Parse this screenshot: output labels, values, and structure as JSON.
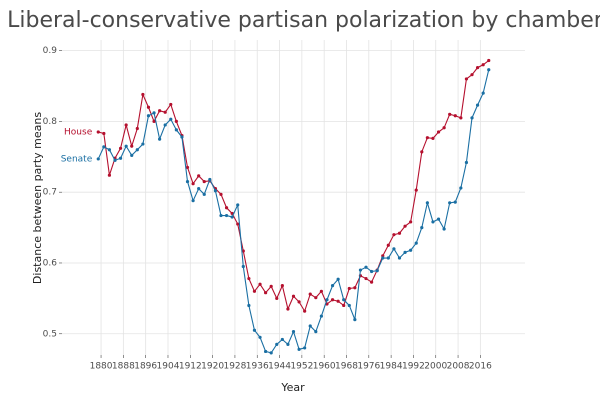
{
  "chart_data": {
    "type": "line",
    "title": "Liberal-conservative partisan polarization by chamber",
    "xlabel": "Year",
    "ylabel": "Distance between party means",
    "x": [
      1879,
      1881,
      1883,
      1885,
      1887,
      1889,
      1891,
      1893,
      1895,
      1897,
      1899,
      1901,
      1903,
      1905,
      1907,
      1909,
      1911,
      1913,
      1915,
      1917,
      1919,
      1921,
      1923,
      1925,
      1927,
      1929,
      1931,
      1933,
      1935,
      1937,
      1939,
      1941,
      1943,
      1945,
      1947,
      1949,
      1951,
      1953,
      1955,
      1957,
      1959,
      1961,
      1963,
      1965,
      1967,
      1969,
      1971,
      1973,
      1975,
      1977,
      1979,
      1981,
      1983,
      1985,
      1987,
      1989,
      1991,
      1993,
      1995,
      1997,
      1999,
      2001,
      2003,
      2005,
      2007,
      2009,
      2011,
      2013,
      2015,
      2017,
      2019
    ],
    "series": [
      {
        "name": "House",
        "color": "#b5102e",
        "values": [
          0.785,
          0.783,
          0.724,
          0.748,
          0.762,
          0.795,
          0.765,
          0.79,
          0.838,
          0.82,
          0.8,
          0.815,
          0.813,
          0.824,
          0.8,
          0.78,
          0.735,
          0.712,
          0.723,
          0.715,
          0.716,
          0.705,
          0.697,
          0.678,
          0.67,
          0.655,
          0.617,
          0.578,
          0.56,
          0.57,
          0.558,
          0.567,
          0.55,
          0.568,
          0.535,
          0.553,
          0.545,
          0.532,
          0.556,
          0.551,
          0.56,
          0.542,
          0.548,
          0.546,
          0.54,
          0.564,
          0.565,
          0.582,
          0.578,
          0.573,
          0.59,
          0.61,
          0.625,
          0.64,
          0.642,
          0.652,
          0.658,
          0.703,
          0.757,
          0.777,
          0.776,
          0.785,
          0.791,
          0.81,
          0.808,
          0.805,
          0.86,
          0.866,
          0.876,
          0.88,
          0.886
        ]
      },
      {
        "name": "Senate",
        "color": "#1a6fa3",
        "values": [
          0.747,
          0.764,
          0.76,
          0.745,
          0.748,
          0.765,
          0.752,
          0.76,
          0.768,
          0.808,
          0.812,
          0.775,
          0.795,
          0.803,
          0.788,
          0.778,
          0.715,
          0.688,
          0.705,
          0.697,
          0.718,
          0.702,
          0.667,
          0.667,
          0.665,
          0.682,
          0.595,
          0.54,
          0.505,
          0.495,
          0.475,
          0.473,
          0.485,
          0.492,
          0.485,
          0.503,
          0.478,
          0.48,
          0.511,
          0.503,
          0.525,
          0.548,
          0.568,
          0.577,
          0.548,
          0.54,
          0.52,
          0.59,
          0.594,
          0.588,
          0.589,
          0.607,
          0.607,
          0.62,
          0.607,
          0.615,
          0.618,
          0.628,
          0.65,
          0.685,
          0.658,
          0.662,
          0.648,
          0.685,
          0.686,
          0.706,
          0.742,
          0.805,
          0.823,
          0.84,
          0.873
        ]
      }
    ],
    "xlim": [
      1866,
      2032
    ],
    "xticks": [
      1880,
      1888,
      1896,
      1904,
      1912,
      1920,
      1928,
      1936,
      1944,
      1952,
      1960,
      1968,
      1976,
      1984,
      1992,
      2000,
      2008,
      2016
    ],
    "ylim": [
      0.47,
      0.915
    ],
    "yticks": [
      0.5,
      0.6,
      0.7,
      0.8,
      0.9
    ],
    "grid": true
  }
}
